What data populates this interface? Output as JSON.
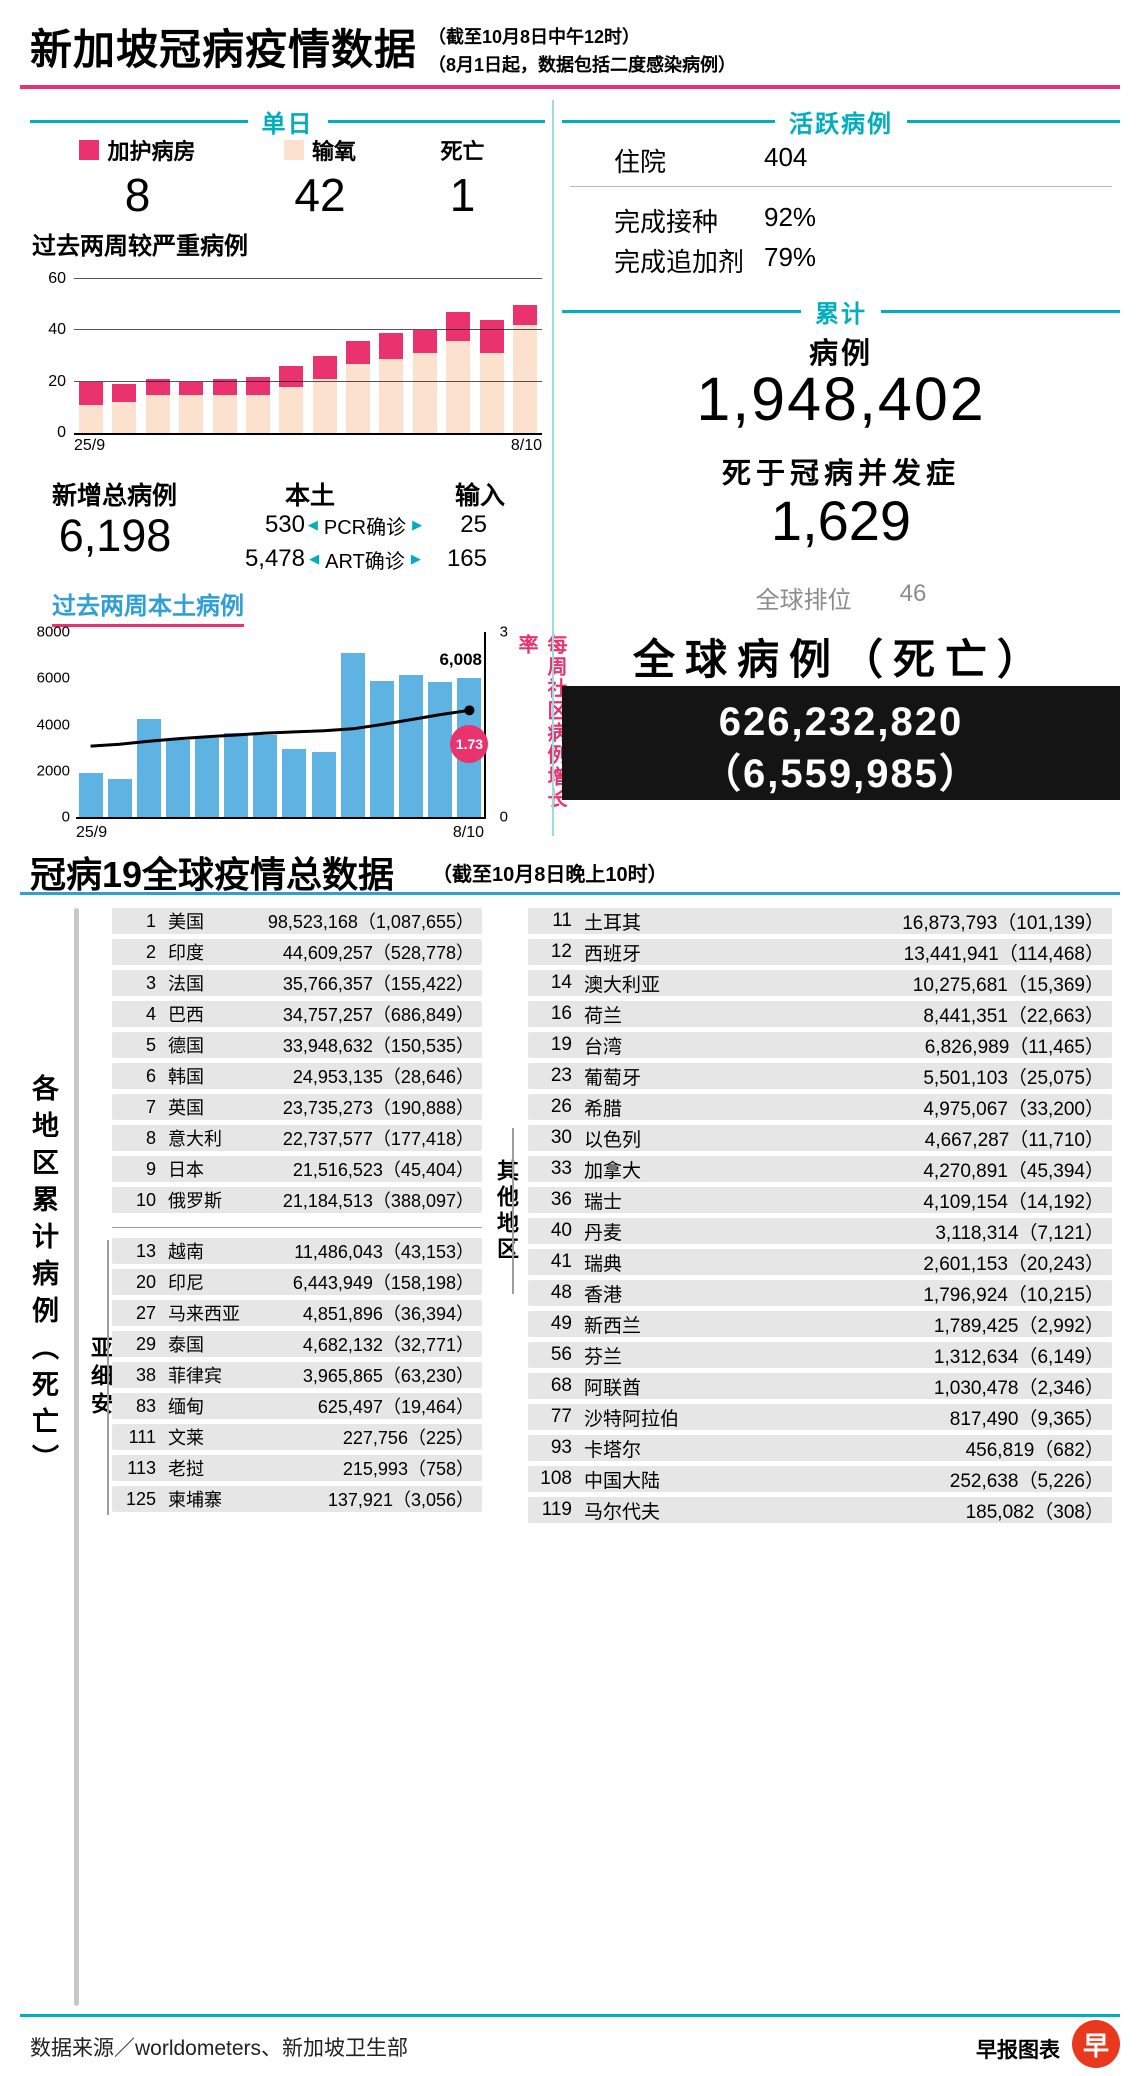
{
  "colors": {
    "pink": "#e9326e",
    "peach": "#fbe1ce",
    "teal": "#00aebd",
    "blue": "#5fb3e2",
    "blue_text": "#2f9fd6",
    "row_gray": "#e6e6e6",
    "logo_red": "#e8391f",
    "box_black": "#141414"
  },
  "header": {
    "title": "新加坡冠病疫情数据",
    "sub1": "（截至10月8日中午12时）",
    "sub2": "（8月1日起，数据包括二度感染病例）"
  },
  "daily": {
    "section_label": "单日",
    "stats": [
      {
        "label": "加护病房",
        "value": "8",
        "swatch": "#e9326e"
      },
      {
        "label": "输氧",
        "value": "42",
        "swatch": "#fbe1ce"
      },
      {
        "label": "死亡",
        "value": "1",
        "swatch": null
      }
    ]
  },
  "severe": {
    "title": "过去两周较严重病例"
  },
  "new_cases": {
    "label": "新增总病例",
    "total": "6,198",
    "local_label": "本土",
    "import_label": "输入",
    "arrow_left": "◀",
    "arrow_right": "▶",
    "rows": [
      {
        "local": "530",
        "mid": "PCR确诊",
        "import": "25"
      },
      {
        "local": "5,478",
        "mid": "ART确诊",
        "import": "165"
      }
    ]
  },
  "local": {
    "title": "过去两周本土病例",
    "growth_label": "每周社区病例增长率",
    "peak_label": "6,008",
    "growth_value": "1.73"
  },
  "active": {
    "section_label": "活跃病例",
    "rows": [
      {
        "label": "住院",
        "value": "404"
      },
      {
        "label": "完成接种",
        "value": "92%"
      },
      {
        "label": "完成追加剂",
        "value": "79%"
      }
    ]
  },
  "cumulative": {
    "section_label": "累计",
    "cases_label": "病例",
    "cases": "1,948,402",
    "deaths_label": "死于冠病并发症",
    "deaths": "1,629",
    "rank_label": "全球排位",
    "rank": "46"
  },
  "global_box": {
    "title": "全球病例（死亡）",
    "cases": "626,232,820",
    "deaths": "（6,559,985）"
  },
  "world": {
    "title": "冠病19全球疫情总数据",
    "subtitle": "（截至10月8日晚上10时）",
    "side_label": "各地区累计病例（死亡）",
    "asean_label": "亚细安",
    "other_label": "其他地区",
    "top10": [
      [
        "1",
        "美国",
        "98,523,168",
        "1,087,655"
      ],
      [
        "2",
        "印度",
        "44,609,257",
        "528,778"
      ],
      [
        "3",
        "法国",
        "35,766,357",
        "155,422"
      ],
      [
        "4",
        "巴西",
        "34,757,257",
        "686,849"
      ],
      [
        "5",
        "德国",
        "33,948,632",
        "150,535"
      ],
      [
        "6",
        "韩国",
        "24,953,135",
        "28,646"
      ],
      [
        "7",
        "英国",
        "23,735,273",
        "190,888"
      ],
      [
        "8",
        "意大利",
        "22,737,577",
        "177,418"
      ],
      [
        "9",
        "日本",
        "21,516,523",
        "45,404"
      ],
      [
        "10",
        "俄罗斯",
        "21,184,513",
        "388,097"
      ]
    ],
    "asean": [
      [
        "13",
        "越南",
        "11,486,043",
        "43,153"
      ],
      [
        "20",
        "印尼",
        "6,443,949",
        "158,198"
      ],
      [
        "27",
        "马来西亚",
        "4,851,896",
        "36,394"
      ],
      [
        "29",
        "泰国",
        "4,682,132",
        "32,771"
      ],
      [
        "38",
        "菲律宾",
        "3,965,865",
        "63,230"
      ],
      [
        "83",
        "缅甸",
        "625,497",
        "19,464"
      ],
      [
        "111",
        "文莱",
        "227,756",
        "225"
      ],
      [
        "113",
        "老挝",
        "215,993",
        "758"
      ],
      [
        "125",
        "柬埔寨",
        "137,921",
        "3,056"
      ]
    ],
    "other": [
      [
        "11",
        "土耳其",
        "16,873,793",
        "101,139"
      ],
      [
        "12",
        "西班牙",
        "13,441,941",
        "114,468"
      ],
      [
        "14",
        "澳大利亚",
        "10,275,681",
        "15,369"
      ],
      [
        "16",
        "荷兰",
        "8,441,351",
        "22,663"
      ],
      [
        "19",
        "台湾",
        "6,826,989",
        "11,465"
      ],
      [
        "23",
        "葡萄牙",
        "5,501,103",
        "25,075"
      ],
      [
        "26",
        "希腊",
        "4,975,067",
        "33,200"
      ],
      [
        "30",
        "以色列",
        "4,667,287",
        "11,710"
      ],
      [
        "33",
        "加拿大",
        "4,270,891",
        "45,394"
      ],
      [
        "36",
        "瑞士",
        "4,109,154",
        "14,192"
      ],
      [
        "40",
        "丹麦",
        "3,118,314",
        "7,121"
      ],
      [
        "41",
        "瑞典",
        "2,601,153",
        "20,243"
      ],
      [
        "48",
        "香港",
        "1,796,924",
        "10,215"
      ],
      [
        "49",
        "新西兰",
        "1,789,425",
        "2,992"
      ],
      [
        "56",
        "芬兰",
        "1,312,634",
        "6,149"
      ],
      [
        "68",
        "阿联酋",
        "1,030,478",
        "2,346"
      ],
      [
        "77",
        "沙特阿拉伯",
        "817,490",
        "9,365"
      ],
      [
        "93",
        "卡塔尔",
        "456,819",
        "682"
      ],
      [
        "108",
        "中国大陆",
        "252,638",
        "5,226"
      ],
      [
        "119",
        "马尔代夫",
        "185,082",
        "308"
      ]
    ]
  },
  "footer": {
    "source": "数据来源／worldometers、新加坡卫生部",
    "brand": "早报图表",
    "logo_char": "早"
  },
  "chart_data": [
    {
      "type": "bar",
      "stacked": true,
      "title": "过去两周较严重病例",
      "categories": [
        "25/9",
        "26/9",
        "27/9",
        "28/9",
        "29/9",
        "30/9",
        "1/10",
        "2/10",
        "3/10",
        "4/10",
        "5/10",
        "6/10",
        "7/10",
        "8/10"
      ],
      "series": [
        {
          "name": "输氧",
          "color": "#fbe1ce",
          "values": [
            11,
            12,
            15,
            15,
            15,
            15,
            18,
            21,
            27,
            29,
            31,
            36,
            31,
            42
          ]
        },
        {
          "name": "加护病房",
          "color": "#e9326e",
          "values": [
            9,
            7,
            6,
            5,
            6,
            7,
            8,
            9,
            9,
            10,
            9,
            11,
            13,
            8
          ]
        }
      ],
      "ylim": [
        0,
        60
      ],
      "yticks": [
        0,
        20,
        40,
        60
      ],
      "xlabel": "",
      "ylabel": "",
      "grid": true,
      "legend_position": "above"
    },
    {
      "type": "bar+line",
      "title": "过去两周本土病例",
      "categories": [
        "25/9",
        "26/9",
        "27/9",
        "28/9",
        "29/9",
        "30/9",
        "1/10",
        "2/10",
        "3/10",
        "4/10",
        "5/10",
        "6/10",
        "7/10",
        "8/10"
      ],
      "bars": {
        "name": "本土病例",
        "color": "#5fb3e2",
        "values": [
          1900,
          1650,
          4250,
          3350,
          3400,
          3650,
          3550,
          2950,
          2800,
          7100,
          5900,
          6150,
          5850,
          6008
        ]
      },
      "line": {
        "name": "每周社区病例增长率",
        "color": "#000000",
        "ylim": [
          0,
          3
        ],
        "values": [
          1.15,
          1.18,
          1.23,
          1.27,
          1.3,
          1.33,
          1.36,
          1.38,
          1.4,
          1.43,
          1.5,
          1.58,
          1.66,
          1.73
        ]
      },
      "ylim": [
        0,
        8000
      ],
      "yticks": [
        0,
        2000,
        4000,
        6000,
        8000
      ],
      "right_yticks": [
        0,
        3
      ],
      "annotations": [
        {
          "text": "6,008",
          "target": "last_bar"
        },
        {
          "text": "1.73",
          "target": "line_end",
          "style": "pink_circle"
        }
      ]
    }
  ]
}
